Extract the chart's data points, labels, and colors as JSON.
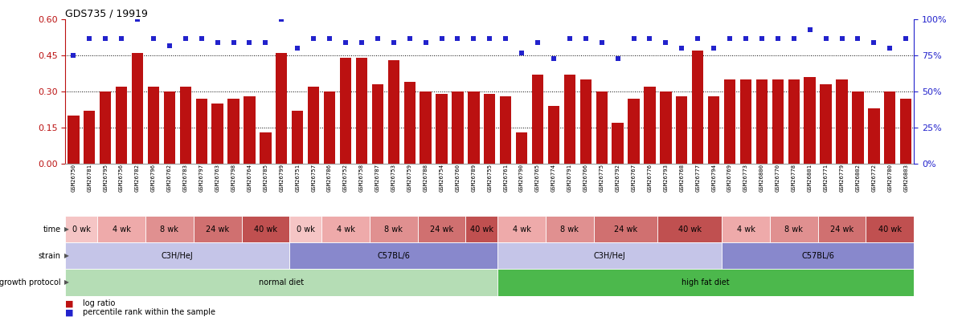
{
  "title": "GDS735 / 19919",
  "samples": [
    "GSM26750",
    "GSM26781",
    "GSM26795",
    "GSM26756",
    "GSM26782",
    "GSM26796",
    "GSM26762",
    "GSM26783",
    "GSM26797",
    "GSM26763",
    "GSM26798",
    "GSM26764",
    "GSM26785",
    "GSM26799",
    "GSM26751",
    "GSM26757",
    "GSM26786",
    "GSM26752",
    "GSM26758",
    "GSM26787",
    "GSM26753",
    "GSM26759",
    "GSM26788",
    "GSM26754",
    "GSM26760",
    "GSM26789",
    "GSM26755",
    "GSM26761",
    "GSM26790",
    "GSM26765",
    "GSM26774",
    "GSM26791",
    "GSM26766",
    "GSM26775",
    "GSM26792",
    "GSM26767",
    "GSM26776",
    "GSM26793",
    "GSM26768",
    "GSM26777",
    "GSM26794",
    "GSM26769",
    "GSM26773",
    "GSM26800",
    "GSM26770",
    "GSM26778",
    "GSM26801",
    "GSM26771",
    "GSM26779",
    "GSM26802",
    "GSM26772",
    "GSM26780",
    "GSM26803"
  ],
  "log_ratio": [
    0.2,
    0.22,
    0.3,
    0.32,
    0.46,
    0.32,
    0.3,
    0.32,
    0.27,
    0.25,
    0.27,
    0.28,
    0.13,
    0.46,
    0.22,
    0.32,
    0.3,
    0.44,
    0.44,
    0.33,
    0.43,
    0.34,
    0.3,
    0.29,
    0.3,
    0.3,
    0.29,
    0.28,
    0.13,
    0.37,
    0.24,
    0.37,
    0.35,
    0.3,
    0.17,
    0.27,
    0.32,
    0.3,
    0.28,
    0.47,
    0.28,
    0.35,
    0.35,
    0.35,
    0.35,
    0.35,
    0.36,
    0.33,
    0.35,
    0.3,
    0.23,
    0.3,
    0.27
  ],
  "percentile": [
    75,
    87,
    87,
    87,
    100,
    87,
    82,
    87,
    87,
    84,
    84,
    84,
    84,
    100,
    80,
    87,
    87,
    84,
    84,
    87,
    84,
    87,
    84,
    87,
    87,
    87,
    87,
    87,
    77,
    84,
    73,
    87,
    87,
    84,
    73,
    87,
    87,
    84,
    80,
    87,
    80,
    87,
    87,
    87,
    87,
    87,
    93,
    87,
    87,
    87,
    84,
    80,
    87
  ],
  "bar_color": "#bb1111",
  "marker_color": "#2222cc",
  "ylim_left": [
    0,
    0.6
  ],
  "ylim_right": [
    0,
    100
  ],
  "yticks_left": [
    0,
    0.15,
    0.3,
    0.45,
    0.6
  ],
  "yticks_right": [
    0,
    25,
    50,
    75,
    100
  ],
  "ytick_labels_right": [
    "0%",
    "25%",
    "50%",
    "75%",
    "100%"
  ],
  "hlines": [
    0.15,
    0.3,
    0.45
  ],
  "growth_protocol_regions": [
    {
      "label": "normal diet",
      "start": 0,
      "end": 27,
      "color": "#b5ddb5"
    },
    {
      "label": "high fat diet",
      "start": 27,
      "end": 53,
      "color": "#4cb84c"
    }
  ],
  "strain_regions": [
    {
      "label": "C3H/HeJ",
      "start": 0,
      "end": 14,
      "color": "#c5c5e8"
    },
    {
      "label": "C57BL/6",
      "start": 14,
      "end": 27,
      "color": "#8888cc"
    },
    {
      "label": "C3H/HeJ",
      "start": 27,
      "end": 41,
      "color": "#c5c5e8"
    },
    {
      "label": "C57BL/6",
      "start": 41,
      "end": 53,
      "color": "#8888cc"
    }
  ],
  "time_regions": [
    {
      "label": "0 wk",
      "start": 0,
      "end": 2,
      "color": "#f5c5c5"
    },
    {
      "label": "4 wk",
      "start": 2,
      "end": 5,
      "color": "#eeaaaa"
    },
    {
      "label": "8 wk",
      "start": 5,
      "end": 8,
      "color": "#e09090"
    },
    {
      "label": "24 wk",
      "start": 8,
      "end": 11,
      "color": "#d07070"
    },
    {
      "label": "40 wk",
      "start": 11,
      "end": 14,
      "color": "#c05050"
    },
    {
      "label": "0 wk",
      "start": 14,
      "end": 16,
      "color": "#f5c5c5"
    },
    {
      "label": "4 wk",
      "start": 16,
      "end": 19,
      "color": "#eeaaaa"
    },
    {
      "label": "8 wk",
      "start": 19,
      "end": 22,
      "color": "#e09090"
    },
    {
      "label": "24 wk",
      "start": 22,
      "end": 25,
      "color": "#d07070"
    },
    {
      "label": "40 wk",
      "start": 25,
      "end": 27,
      "color": "#c05050"
    },
    {
      "label": "4 wk",
      "start": 27,
      "end": 30,
      "color": "#eeaaaa"
    },
    {
      "label": "8 wk",
      "start": 30,
      "end": 33,
      "color": "#e09090"
    },
    {
      "label": "24 wk",
      "start": 33,
      "end": 37,
      "color": "#d07070"
    },
    {
      "label": "40 wk",
      "start": 37,
      "end": 41,
      "color": "#c05050"
    },
    {
      "label": "4 wk",
      "start": 41,
      "end": 44,
      "color": "#eeaaaa"
    },
    {
      "label": "8 wk",
      "start": 44,
      "end": 47,
      "color": "#e09090"
    },
    {
      "label": "24 wk",
      "start": 47,
      "end": 50,
      "color": "#d07070"
    },
    {
      "label": "40 wk",
      "start": 50,
      "end": 53,
      "color": "#c05050"
    }
  ],
  "legend_items": [
    {
      "label": "log ratio",
      "color": "#bb1111"
    },
    {
      "label": "percentile rank within the sample",
      "color": "#2222cc"
    }
  ],
  "figsize": [
    11.97,
    4.05
  ],
  "dpi": 100
}
